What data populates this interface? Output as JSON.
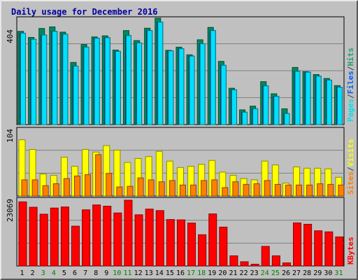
{
  "chart_data": [
    {
      "type": "bar",
      "title": "Daily usage for December 2016",
      "scale_label": "404",
      "ylim": [
        0,
        404
      ],
      "days": [
        "1",
        "2",
        "3",
        "4",
        "5",
        "6",
        "7",
        "8",
        "9",
        "10",
        "11",
        "12",
        "13",
        "14",
        "15",
        "16",
        "17",
        "18",
        "19",
        "20",
        "21",
        "22",
        "23",
        "24",
        "25",
        "26",
        "27",
        "28",
        "29",
        "30",
        "31"
      ],
      "weekend_days": [
        3,
        4,
        10,
        11,
        17,
        18,
        24,
        25,
        31
      ],
      "series": [
        {
          "name": "Hits",
          "values": [
            354,
            331,
            365,
            371,
            351,
            236,
            304,
            333,
            337,
            283,
            357,
            319,
            366,
            404,
            282,
            294,
            265,
            322,
            369,
            240,
            138,
            56,
            70,
            163,
            117,
            60,
            217,
            201,
            190,
            175,
            148
          ]
        },
        {
          "name": "Files",
          "values": [
            347,
            324,
            340,
            354,
            343,
            222,
            294,
            328,
            330,
            278,
            338,
            310,
            357,
            389,
            280,
            288,
            260,
            307,
            357,
            225,
            132,
            47,
            60,
            147,
            107,
            42,
            202,
            199,
            184,
            169,
            142
          ]
        },
        {
          "name": "Pages",
          "values": [
            153,
            142,
            110,
            126,
            104,
            92,
            118,
            128,
            124,
            114,
            127,
            120,
            120,
            110,
            93,
            92,
            84,
            98,
            110,
            70,
            46,
            16,
            30,
            73,
            50,
            14,
            78,
            68,
            56,
            56,
            53
          ]
        }
      ]
    },
    {
      "type": "bar",
      "scale_label": "104",
      "ylim": [
        0,
        104
      ],
      "days": [
        "1",
        "2",
        "3",
        "4",
        "5",
        "6",
        "7",
        "8",
        "9",
        "10",
        "11",
        "12",
        "13",
        "14",
        "15",
        "16",
        "17",
        "18",
        "19",
        "20",
        "21",
        "22",
        "23",
        "24",
        "25",
        "26",
        "27",
        "28",
        "29",
        "30",
        "31"
      ],
      "series": [
        {
          "name": "Visits",
          "values": [
            87,
            72,
            34,
            32,
            60,
            46,
            72,
            68,
            78,
            71,
            52,
            58,
            61,
            69,
            54,
            44,
            46,
            49,
            55,
            37,
            32,
            27,
            25,
            54,
            48,
            20,
            45,
            43,
            43,
            42,
            29
          ]
        },
        {
          "name": "Sites",
          "values": [
            25,
            25,
            16,
            19,
            27,
            31,
            33,
            64,
            35,
            14,
            15,
            28,
            25,
            22,
            24,
            17,
            17,
            24,
            25,
            13,
            22,
            18,
            19,
            24,
            18,
            17,
            17,
            17,
            19,
            18,
            17
          ]
        }
      ]
    },
    {
      "type": "bar",
      "scale_label": "23069",
      "ylim": [
        0,
        23069
      ],
      "days": [
        "1",
        "2",
        "3",
        "4",
        "5",
        "6",
        "7",
        "8",
        "9",
        "10",
        "11",
        "12",
        "13",
        "14",
        "15",
        "16",
        "17",
        "18",
        "19",
        "20",
        "21",
        "22",
        "23",
        "24",
        "25",
        "26",
        "27",
        "28",
        "29",
        "30",
        "31"
      ],
      "series": [
        {
          "name": "KBytes",
          "values": [
            22480,
            20600,
            18160,
            20320,
            20700,
            13960,
            19700,
            21410,
            20970,
            18600,
            23069,
            17960,
            19950,
            19430,
            16290,
            16180,
            15050,
            10960,
            18260,
            13640,
            3570,
            1490,
            630,
            6870,
            3580,
            1100,
            15120,
            14630,
            12350,
            11970,
            10200
          ]
        }
      ]
    }
  ],
  "legend": {
    "top": [
      {
        "text": "Pages",
        "color": "#00e0f0"
      },
      {
        "text": "/",
        "color": "#404040"
      },
      {
        "text": "Files",
        "color": "#0060ff"
      },
      {
        "text": "/",
        "color": "#404040"
      },
      {
        "text": "Hits",
        "color": "#20a070"
      }
    ],
    "middle": [
      {
        "text": "Sites",
        "color": "#ff8000"
      },
      {
        "text": "/",
        "color": "#404040"
      },
      {
        "text": "Visits",
        "color": "#ffff00"
      }
    ],
    "bottom": [
      {
        "text": "KBytes",
        "color": "#ff0000"
      }
    ]
  },
  "colors": {
    "hits": "#008a5c",
    "files": "#0050d0",
    "pages": "#00e0ff",
    "visits": "#ffff00",
    "sites": "#ff8000",
    "kbytes": "#ff0000",
    "title": "#0000a0",
    "weekday": "#000000",
    "weekend": "#008000"
  }
}
